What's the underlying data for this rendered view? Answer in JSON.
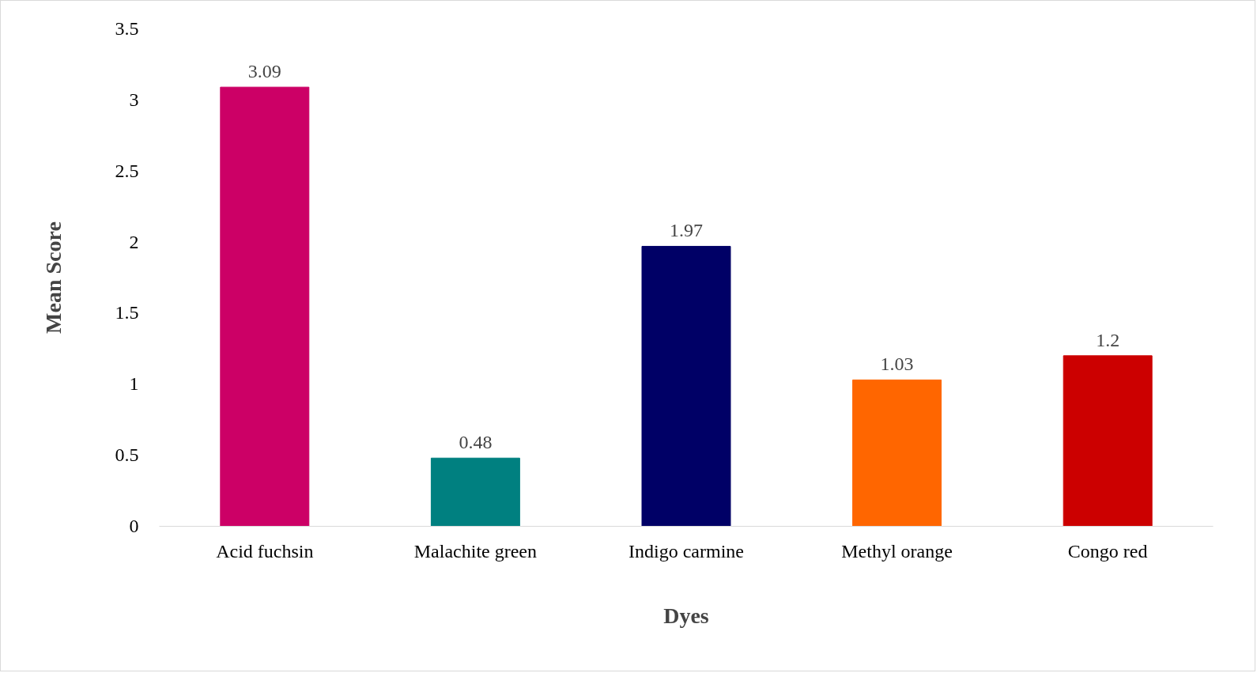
{
  "chart_data": {
    "type": "bar",
    "xlabel": "Dyes",
    "ylabel": "Mean Score",
    "categories": [
      "Acid fuchsin",
      "Malachite green",
      "Indigo carmine",
      "Methyl orange",
      "Congo red"
    ],
    "values": [
      3.09,
      0.48,
      1.97,
      1.03,
      1.2
    ],
    "colors": [
      "#cc0066",
      "#008080",
      "#000066",
      "#ff6600",
      "#cc0000"
    ],
    "ylim": [
      0,
      3.5
    ],
    "yticks": [
      0,
      0.5,
      1,
      1.5,
      2,
      2.5,
      3,
      3.5
    ],
    "data_labels": true
  }
}
